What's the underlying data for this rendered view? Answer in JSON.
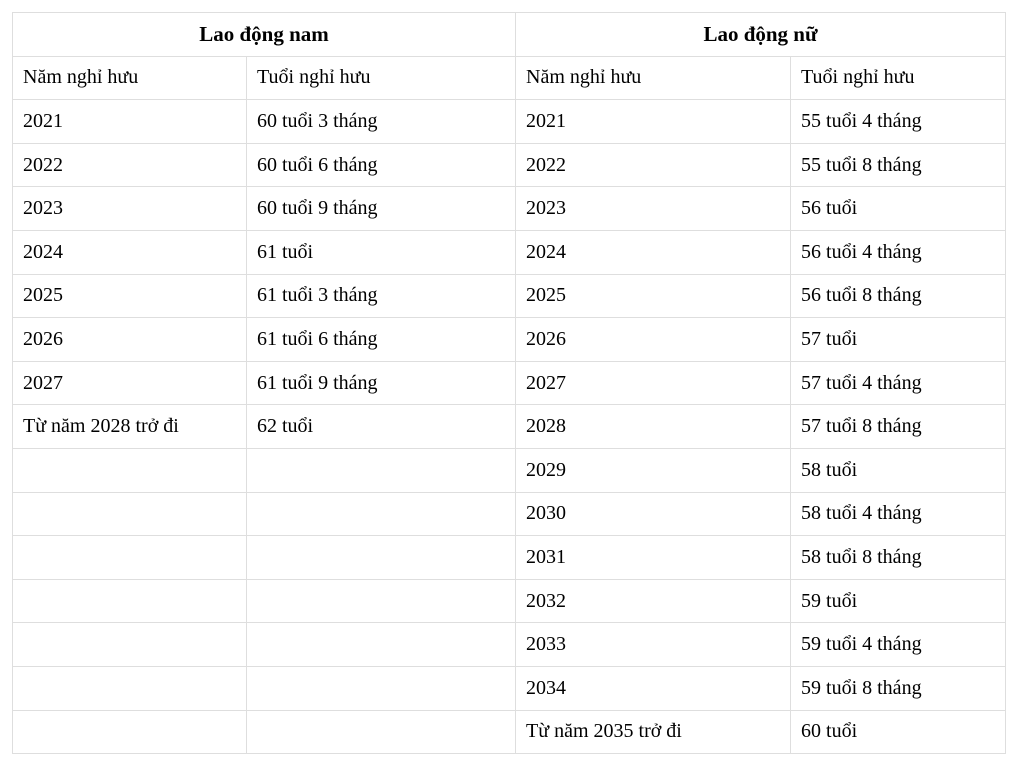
{
  "table": {
    "groups": [
      {
        "title": "Lao động nam",
        "col_headers": [
          "Năm nghỉ hưu",
          "Tuổi nghỉ hưu"
        ]
      },
      {
        "title": "Lao động nữ",
        "col_headers": [
          "Năm nghỉ hưu",
          "Tuổi nghỉ hưu"
        ]
      }
    ],
    "rows": [
      [
        "2021",
        "60 tuổi 3 tháng",
        "2021",
        "55 tuổi 4 tháng"
      ],
      [
        "2022",
        "60 tuổi 6 tháng",
        "2022",
        "55 tuổi 8 tháng"
      ],
      [
        "2023",
        "60 tuổi 9 tháng",
        "2023",
        "56 tuổi"
      ],
      [
        "2024",
        "61 tuổi",
        "2024",
        "56 tuổi 4 tháng"
      ],
      [
        "2025",
        "61 tuổi 3 tháng",
        "2025",
        "56 tuổi 8 tháng"
      ],
      [
        "2026",
        "61 tuổi 6 tháng",
        "2026",
        "57 tuổi"
      ],
      [
        "2027",
        "61 tuổi 9 tháng",
        "2027",
        "57 tuổi 4 tháng"
      ],
      [
        "Từ năm 2028 trở đi",
        "62 tuổi",
        "2028",
        "57 tuổi 8 tháng"
      ],
      [
        "",
        "",
        "2029",
        "58 tuổi"
      ],
      [
        "",
        "",
        "2030",
        "58 tuổi 4 tháng"
      ],
      [
        "",
        "",
        "2031",
        "58 tuổi 8 tháng"
      ],
      [
        "",
        "",
        "2032",
        "59 tuổi"
      ],
      [
        "",
        "",
        "2033",
        "59 tuổi 4 tháng"
      ],
      [
        "",
        "",
        "2034",
        "59 tuổi 8 tháng"
      ],
      [
        "",
        "",
        "Từ năm 2035 trở đi",
        "60 tuổi"
      ]
    ],
    "colors": {
      "border": "#dedede",
      "text": "#000000",
      "background": "#ffffff"
    }
  }
}
